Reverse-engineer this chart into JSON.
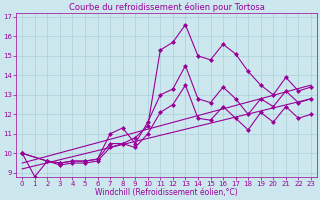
{
  "title": "Courbe du refroidissement éolien pour Tortosa",
  "xlabel": "Windchill (Refroidissement éolien,°C)",
  "background_color": "#cce8ee",
  "line_color": "#990099",
  "xlim_min": -0.5,
  "xlim_max": 23.5,
  "ylim_min": 8.8,
  "ylim_max": 17.2,
  "yticks": [
    9,
    10,
    11,
    12,
    13,
    14,
    15,
    16,
    17
  ],
  "xticks": [
    0,
    1,
    2,
    3,
    4,
    5,
    6,
    7,
    8,
    9,
    10,
    11,
    12,
    13,
    14,
    15,
    16,
    17,
    18,
    19,
    20,
    21,
    22,
    23
  ],
  "series1_x": [
    0,
    1,
    2,
    3,
    4,
    5,
    6,
    7,
    8,
    9,
    10,
    11,
    12,
    13,
    14,
    15,
    16,
    17,
    18,
    19,
    20,
    21,
    22,
    23
  ],
  "series1_y": [
    10.0,
    8.8,
    9.6,
    9.4,
    9.5,
    9.5,
    9.6,
    10.3,
    10.5,
    10.8,
    11.4,
    15.3,
    15.7,
    16.6,
    15.0,
    14.8,
    15.6,
    15.1,
    14.2,
    13.5,
    13.0,
    13.9,
    13.2,
    13.4
  ],
  "series2_x": [
    0,
    2,
    3,
    4,
    5,
    6,
    7,
    8,
    9,
    10,
    11,
    12,
    13,
    14,
    15,
    16,
    17,
    18,
    19,
    20,
    21,
    22,
    23
  ],
  "series2_y": [
    10.0,
    9.6,
    9.5,
    9.6,
    9.6,
    9.7,
    11.0,
    11.3,
    10.5,
    11.6,
    13.0,
    13.3,
    14.5,
    12.8,
    12.6,
    13.4,
    12.8,
    12.0,
    12.8,
    12.4,
    13.2,
    12.6,
    12.8
  ],
  "series3_x": [
    0,
    2,
    3,
    4,
    5,
    6,
    7,
    8,
    9,
    10,
    11,
    12,
    13,
    14,
    15,
    16,
    17,
    18,
    19,
    20,
    21,
    22,
    23
  ],
  "series3_y": [
    10.0,
    9.6,
    9.5,
    9.6,
    9.6,
    9.7,
    10.5,
    10.5,
    10.3,
    11.0,
    12.1,
    12.5,
    13.5,
    11.8,
    11.7,
    12.4,
    11.8,
    11.2,
    12.1,
    11.6,
    12.4,
    11.8,
    12.0
  ],
  "trend1_x": [
    0,
    23
  ],
  "trend1_y": [
    9.5,
    13.5
  ],
  "trend2_x": [
    0,
    23
  ],
  "trend2_y": [
    9.2,
    12.8
  ],
  "grid_color": "#aad0d8",
  "marker": "D",
  "markersize": 2,
  "linewidth": 0.8,
  "tick_fontsize": 5,
  "xlabel_fontsize": 5.5,
  "title_fontsize": 6
}
